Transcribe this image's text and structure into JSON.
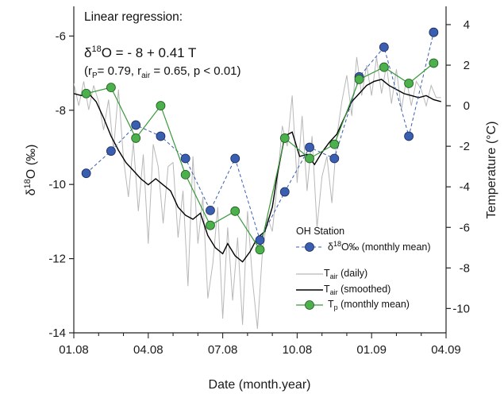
{
  "chart_data": {
    "type": "line",
    "xlabel": "Date (month.year)",
    "ylabel_left": "δ18O (‰)",
    "ylabel_right": "Temperature (°C)",
    "x_ticks": [
      "01.08",
      "04.08",
      "07.08",
      "10.08",
      "01.09",
      "04.09"
    ],
    "xlim_months": [
      0,
      15
    ],
    "ylim_left": [
      -14,
      -5.2
    ],
    "yticks_left": [
      -14,
      -12,
      -10,
      -8,
      -6
    ],
    "ylim_right": [
      -11.2,
      4.9
    ],
    "yticks_right": [
      4,
      2,
      0,
      -2,
      -4,
      -6,
      -8,
      -10
    ],
    "grid": false,
    "legend_position": "bottom-right",
    "annotation": {
      "line1": "Linear regression:",
      "equation": "δ18O = - 8 + 0.41 T",
      "stats": "(rp= 0.79, rair = 0.65, p < 0.01)"
    },
    "legend": {
      "title": "OH Station",
      "entries": [
        {
          "label": "δ18O‰ (monthly mean)",
          "style": "dashed-blue-circle"
        },
        {
          "label": "Tair (daily)",
          "style": "gray-line"
        },
        {
          "label": "Tair (smoothed)",
          "style": "black-line"
        },
        {
          "label": "Tp (monthly mean)",
          "style": "green-line-circle"
        }
      ]
    },
    "series": [
      {
        "name": "δ18O‰ (monthly mean)",
        "axis": "left",
        "color": "#3a5fb0",
        "x": [
          "01.08",
          "02.08",
          "03.08",
          "04.08",
          "05.08",
          "06.08",
          "07.08",
          "08.08",
          "09.08",
          "10.08",
          "11.08",
          "12.08",
          "01.09",
          "02.09",
          "03.09"
        ],
        "values": [
          -9.7,
          -9.1,
          -8.4,
          -8.7,
          -9.3,
          -10.7,
          -9.3,
          -11.5,
          -10.2,
          -9.0,
          -9.3,
          -7.1,
          -6.3,
          -8.7,
          -5.9
        ]
      },
      {
        "name": "Tp (monthly mean)",
        "axis": "right",
        "color": "#3a9a3a",
        "x": [
          "01.08",
          "02.08",
          "03.08",
          "04.08",
          "05.08",
          "06.08",
          "07.08",
          "08.08",
          "09.08",
          "10.08",
          "11.08",
          "12.08",
          "01.09",
          "02.09",
          "03.09"
        ],
        "values": [
          0.6,
          0.9,
          -1.6,
          0.0,
          -3.4,
          -5.9,
          -5.2,
          -7.1,
          -1.6,
          -2.6,
          -1.9,
          1.3,
          1.9,
          1.1,
          2.1
        ]
      },
      {
        "name": "Tair (smoothed)",
        "axis": "right",
        "color": "#000000",
        "x_months": [
          0,
          0.3,
          0.6,
          0.9,
          1.2,
          1.5,
          1.8,
          2.1,
          2.4,
          2.7,
          3.0,
          3.3,
          3.6,
          3.9,
          4.2,
          4.5,
          4.8,
          5.1,
          5.4,
          5.7,
          6.0,
          6.2,
          6.5,
          6.8,
          7.1,
          7.4,
          7.7,
          8.0,
          8.2,
          8.5,
          8.8,
          9.1,
          9.4,
          9.7,
          10.0,
          10.3,
          10.6,
          10.9,
          11.2,
          11.5,
          11.8,
          12.1,
          12.4,
          12.7,
          13.0,
          13.3,
          13.6,
          13.9,
          14.2,
          14.5,
          14.8
        ],
        "values": [
          0.6,
          0.5,
          0.6,
          0.2,
          -0.6,
          -1.5,
          -2.2,
          -2.8,
          -3.2,
          -3.6,
          -3.9,
          -3.6,
          -3.9,
          -4.2,
          -5.0,
          -5.4,
          -5.6,
          -5.3,
          -6.4,
          -7.0,
          -7.3,
          -6.8,
          -7.4,
          -7.7,
          -7.2,
          -6.5,
          -6.2,
          -5.0,
          -3.4,
          -1.5,
          -1.3,
          -2.5,
          -2.4,
          -2.9,
          -2.3,
          -1.8,
          -1.4,
          -0.6,
          0.2,
          0.6,
          1.0,
          1.2,
          1.3,
          1.0,
          0.8,
          0.6,
          0.5,
          0.4,
          0.5,
          0.3,
          0.2
        ]
      },
      {
        "name": "Tair (daily)",
        "axis": "right",
        "color": "#b5b5b5",
        "x_months": [
          0,
          0.2,
          0.4,
          0.6,
          0.8,
          1.0,
          1.2,
          1.4,
          1.6,
          1.8,
          2.0,
          2.2,
          2.4,
          2.6,
          2.8,
          3.0,
          3.2,
          3.4,
          3.6,
          3.8,
          4.0,
          4.2,
          4.4,
          4.6,
          4.8,
          5.0,
          5.2,
          5.4,
          5.6,
          5.8,
          6.0,
          6.2,
          6.4,
          6.6,
          6.8,
          7.0,
          7.2,
          7.4,
          7.6,
          7.8,
          8.0,
          8.2,
          8.4,
          8.6,
          8.8,
          9.0,
          9.2,
          9.4,
          9.6,
          9.8,
          10.0,
          10.2,
          10.4,
          10.6,
          10.8,
          11.0,
          11.2,
          11.4,
          11.6,
          11.8,
          12.0,
          12.2,
          12.4,
          12.6,
          12.8,
          13.0,
          13.2,
          13.4,
          13.6,
          13.8,
          14.0,
          14.2,
          14.4,
          14.6,
          14.8
        ],
        "values": [
          1.1,
          0.0,
          1.2,
          -0.2,
          1.0,
          0.2,
          -1.2,
          0.3,
          -2.2,
          0.8,
          -2.6,
          -4.5,
          -1.8,
          -5.2,
          -2.4,
          -6.8,
          -1.9,
          -3.0,
          -5.8,
          -3.0,
          -2.8,
          -6.5,
          -4.2,
          -8.9,
          -2.5,
          -6.8,
          -4.5,
          -9.5,
          -7.8,
          -5.0,
          -10.5,
          -6.0,
          -9.6,
          -6.5,
          -10.8,
          -5.2,
          -8.6,
          -11.0,
          -7.2,
          -5.5,
          -6.2,
          -3.8,
          -1.0,
          -2.0,
          0.5,
          -3.8,
          -0.5,
          -4.2,
          -1.5,
          -6.0,
          -3.5,
          -2.5,
          -4.8,
          -1.5,
          0.2,
          1.5,
          -0.5,
          2.4,
          0.5,
          2.0,
          0.5,
          2.4,
          0.6,
          2.0,
          0.1,
          1.8,
          -0.2,
          1.3,
          0.0,
          1.2,
          0.8,
          0.0,
          1.0,
          0.4,
          0.4
        ]
      }
    ]
  }
}
